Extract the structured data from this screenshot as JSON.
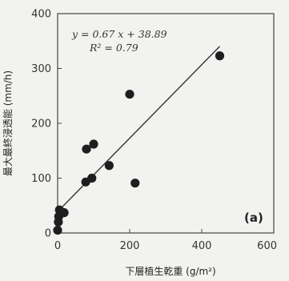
{
  "chart_data": {
    "type": "scatter",
    "title": "",
    "xlabel": "下層植生乾重 (g/m²)",
    "ylabel": "最大最終浸透能 (mm/h)",
    "xlim": [
      0,
      600
    ],
    "ylim": [
      0,
      400
    ],
    "xticks": [
      "0",
      "200",
      "400",
      "600"
    ],
    "yticks": [
      "0",
      "100",
      "200",
      "300",
      "400"
    ],
    "panel_label": "(a)",
    "equation_line1": "y = 0.67 x + 38.89",
    "equation_line2": "R² = 0.79",
    "points": [
      {
        "x": 0,
        "y": 5
      },
      {
        "x": 2,
        "y": 20
      },
      {
        "x": 3,
        "y": 30
      },
      {
        "x": 5,
        "y": 42
      },
      {
        "x": 18,
        "y": 37
      },
      {
        "x": 78,
        "y": 93
      },
      {
        "x": 95,
        "y": 100
      },
      {
        "x": 80,
        "y": 153
      },
      {
        "x": 100,
        "y": 162
      },
      {
        "x": 143,
        "y": 123
      },
      {
        "x": 200,
        "y": 253
      },
      {
        "x": 215,
        "y": 91
      },
      {
        "x": 450,
        "y": 323
      }
    ],
    "regression": {
      "slope": 0.67,
      "intercept": 38.89,
      "x_from": 0,
      "x_to": 450
    },
    "grid": false,
    "legend": "none"
  }
}
